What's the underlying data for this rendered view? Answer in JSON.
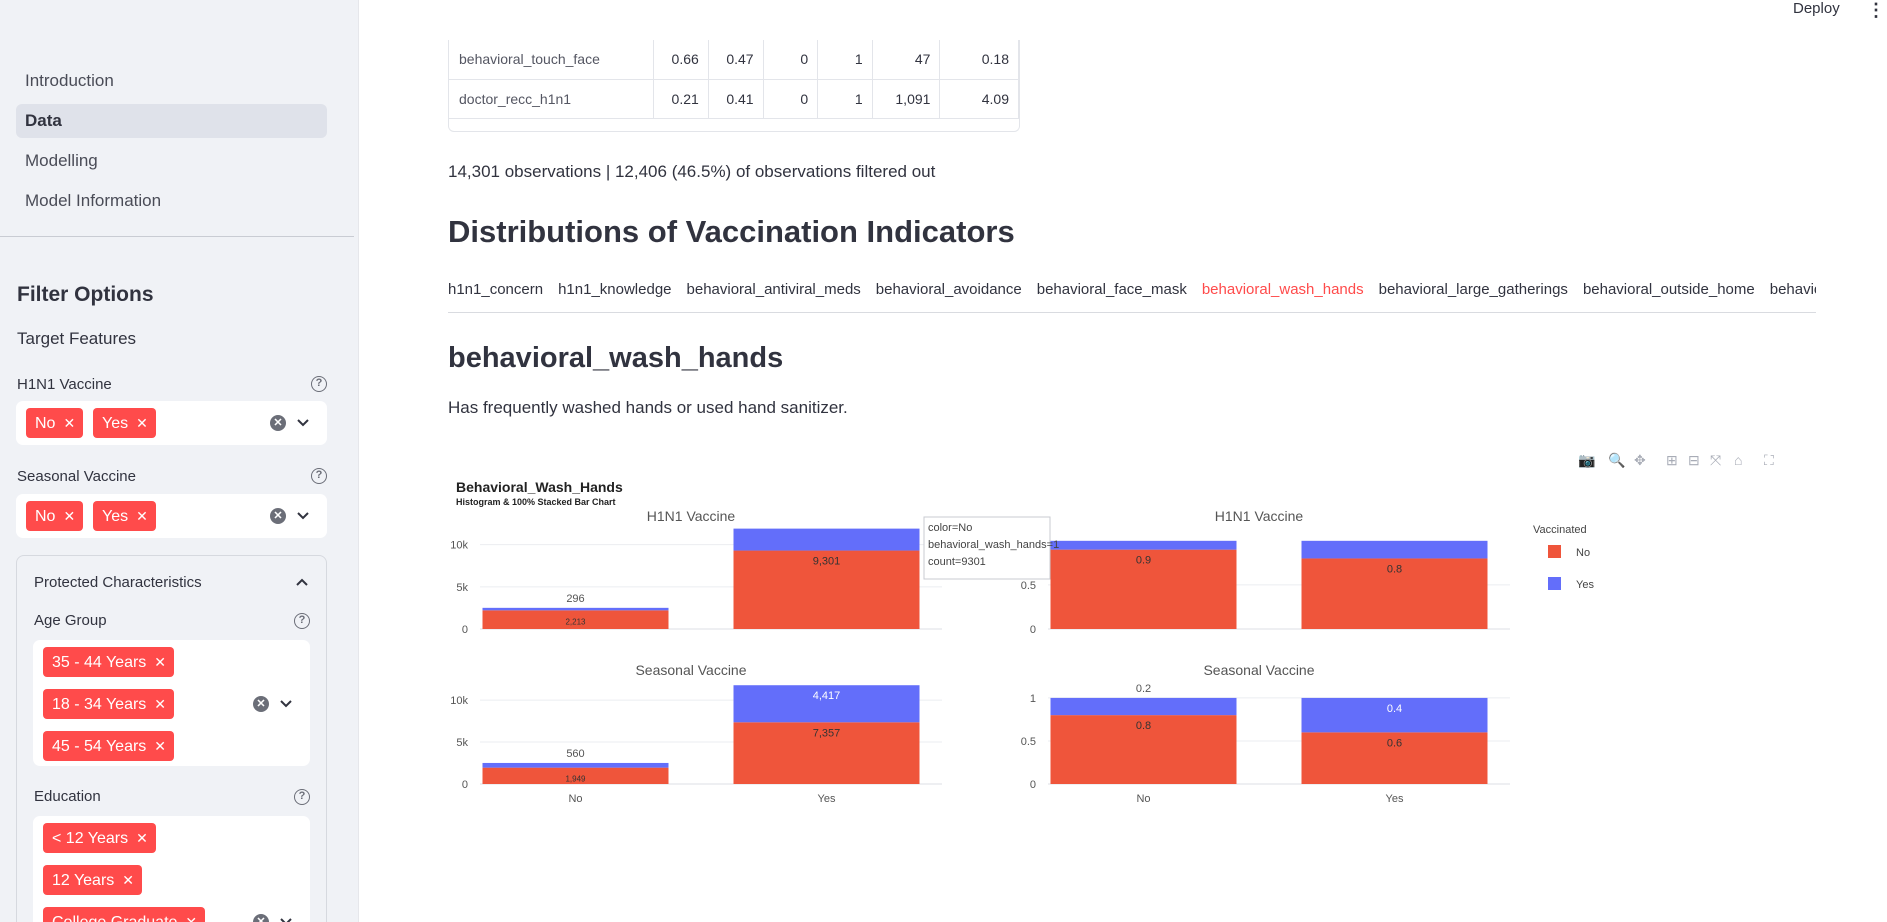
{
  "header": {
    "deploy_label": "Deploy",
    "menu_icon": "kebab-menu-icon"
  },
  "sidebar": {
    "nav": [
      "Introduction",
      "Data",
      "Modelling",
      "Model Information"
    ],
    "active_nav": "Data",
    "filter_heading": "Filter Options",
    "target_features_label": "Target Features",
    "h1n1": {
      "label": "H1N1 Vaccine",
      "tags": [
        "No",
        "Yes"
      ]
    },
    "seasonal": {
      "label": "Seasonal Vaccine",
      "tags": [
        "No",
        "Yes"
      ]
    },
    "protected": {
      "title": "Protected Characteristics",
      "age_label": "Age Group",
      "age_tags": [
        "35 - 44 Years",
        "18 - 34 Years",
        "45 - 54 Years"
      ],
      "education_label": "Education",
      "education_tags": [
        "< 12 Years",
        "12 Years",
        "College Graduate"
      ]
    },
    "accent_color": "#ff4b4b"
  },
  "table": {
    "rows": [
      [
        "behavioral_touch_face",
        "0.66",
        "0.47",
        "0",
        "1",
        "47",
        "0.18"
      ],
      [
        "doctor_recc_h1n1",
        "0.21",
        "0.41",
        "0",
        "1",
        "1,091",
        "4.09"
      ]
    ]
  },
  "main": {
    "observations": "14,301 observations | 12,406 (46.5%) of observations filtered out",
    "section_title": "Distributions of Vaccination Indicators",
    "tabs": [
      "h1n1_concern",
      "h1n1_knowledge",
      "behavioral_antiviral_meds",
      "behavioral_avoidance",
      "behavioral_face_mask",
      "behavioral_wash_hands",
      "behavioral_large_gatherings",
      "behavioral_outside_home",
      "behavior"
    ],
    "active_tab": "behavioral_wash_hands",
    "feature_title": "behavioral_wash_hands",
    "feature_desc": "Has frequently washed hands or used hand sanitizer."
  },
  "chart_data": {
    "type": "bar",
    "title": "Behavioral_Wash_Hands",
    "subtitle": "Histogram & 100% Stacked Bar Chart",
    "legend_title": "Vaccinated",
    "legend_position": "right",
    "colors": {
      "No": "#ef553b",
      "Yes": "#636efa"
    },
    "categories": [
      "No",
      "Yes"
    ],
    "panels": [
      {
        "title": "H1N1 Vaccine",
        "kind": "count",
        "ylim": [
          0,
          11500
        ],
        "yticks": [
          0,
          5000,
          10000
        ],
        "yticklabels": [
          "0",
          "5k",
          "10k"
        ],
        "series": [
          {
            "name": "No",
            "values": [
              2213,
              9301
            ]
          },
          {
            "name": "Yes",
            "values": [
              296,
              2600
            ]
          }
        ],
        "labels": [
          [
            "2,213",
            "9,301"
          ],
          [
            "296",
            ""
          ]
        ]
      },
      {
        "title": "H1N1 Vaccine",
        "kind": "percent",
        "ylim": [
          0,
          1.1
        ],
        "yticks": [
          0,
          0.5
        ],
        "yticklabels": [
          "0",
          "0.5"
        ],
        "series": [
          {
            "name": "No",
            "values": [
              0.9,
              0.8
            ]
          },
          {
            "name": "Yes",
            "values": [
              0.1,
              0.2
            ]
          }
        ],
        "labels": [
          [
            "0.9",
            "0.8"
          ],
          [
            "",
            ""
          ]
        ]
      },
      {
        "title": "Seasonal Vaccine",
        "kind": "count",
        "ylim": [
          0,
          11800
        ],
        "yticks": [
          0,
          5000,
          10000
        ],
        "yticklabels": [
          "0",
          "5k",
          "10k"
        ],
        "series": [
          {
            "name": "No",
            "values": [
              1949,
              7357
            ]
          },
          {
            "name": "Yes",
            "values": [
              560,
              4417
            ]
          }
        ],
        "labels": [
          [
            "1,949",
            "7,357"
          ],
          [
            "560",
            "4,417"
          ]
        ]
      },
      {
        "title": "Seasonal Vaccine",
        "kind": "percent",
        "ylim": [
          0,
          1.15
        ],
        "yticks": [
          0,
          0.5,
          1
        ],
        "yticklabels": [
          "0",
          "0.5",
          "1"
        ],
        "series": [
          {
            "name": "No",
            "values": [
              0.8,
              0.6
            ]
          },
          {
            "name": "Yes",
            "values": [
              0.2,
              0.4
            ]
          }
        ],
        "labels": [
          [
            "0.8",
            "0.6"
          ],
          [
            "0.2",
            "0.4"
          ]
        ]
      }
    ],
    "tooltip": [
      "color=No",
      "behavioral_wash_hands=1",
      "count=9301"
    ]
  }
}
